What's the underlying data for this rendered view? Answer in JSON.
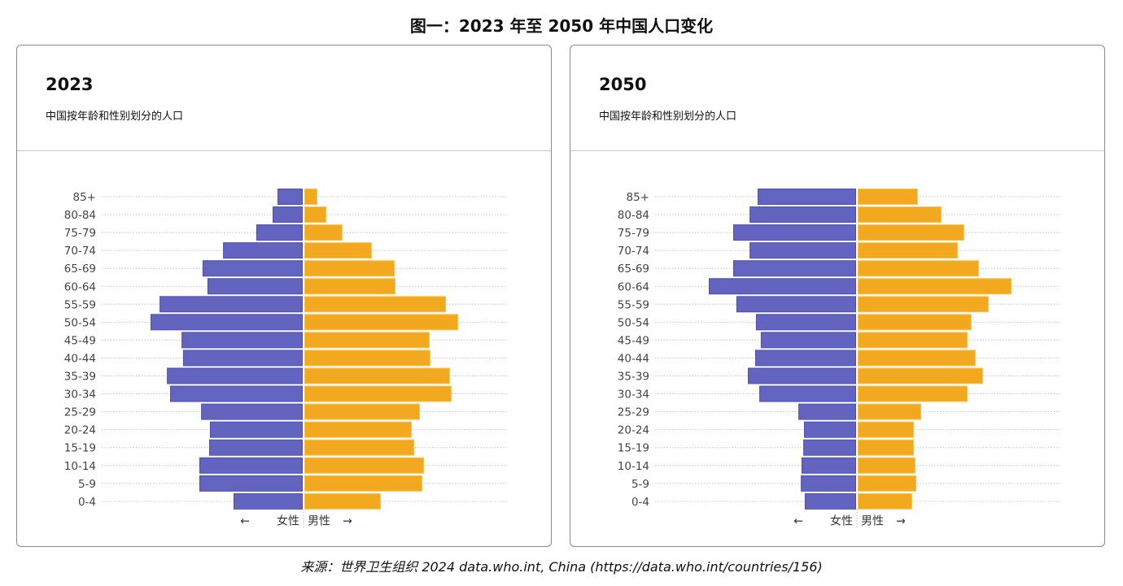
{
  "title": "图一：2023 年至 2050 年中国人口变化",
  "source": "来源：世界卫生组织 2024 data.who.int, China (https://data.who.int/countries/156)",
  "colors": {
    "female": "#6264c0",
    "male": "#f2a81f",
    "female_stroke": "#4d4fae",
    "male_stroke": "#f7c35a"
  },
  "chart_data": [
    {
      "type": "bar",
      "orientation": "horizontal-pyramid",
      "title": "2023",
      "subtitle": "中国按年龄和性别划分的人口",
      "categories": [
        "85+",
        "80-84",
        "75-79",
        "70-74",
        "65-69",
        "60-64",
        "55-59",
        "50-54",
        "45-49",
        "40-44",
        "35-39",
        "30-34",
        "25-29",
        "20-24",
        "15-19",
        "10-14",
        "5-9",
        "0-4"
      ],
      "series": [
        {
          "name": "女性",
          "side": "left",
          "values": [
            10.0,
            12.0,
            18.7,
            32.3,
            40.7,
            38.7,
            58.3,
            62.0,
            49.3,
            48.7,
            55.3,
            54.0,
            41.3,
            37.7,
            38.0,
            42.0,
            42.0,
            28.0
          ]
        },
        {
          "name": "男性",
          "side": "right",
          "values": [
            5.0,
            8.7,
            15.3,
            27.3,
            36.7,
            37.0,
            57.7,
            62.7,
            51.0,
            51.3,
            59.3,
            60.0,
            47.0,
            43.7,
            44.7,
            48.7,
            48.0,
            31.0
          ]
        }
      ],
      "x_axis": {
        "left_label": "女性",
        "right_label": "男性",
        "left_arrow": "←",
        "right_arrow": "→"
      },
      "units": "millions (estimated, no axis scale shown)",
      "xlim": [
        -70,
        70
      ],
      "grid": true,
      "grid_style": "dotted horizontal"
    },
    {
      "type": "bar",
      "orientation": "horizontal-pyramid",
      "title": "2050",
      "subtitle": "中国按年龄和性别划分的人口",
      "categories": [
        "85+",
        "80-84",
        "75-79",
        "70-74",
        "65-69",
        "60-64",
        "55-59",
        "50-54",
        "45-49",
        "40-44",
        "35-39",
        "30-34",
        "25-29",
        "20-24",
        "15-19",
        "10-14",
        "5-9",
        "0-4"
      ],
      "series": [
        {
          "name": "女性",
          "side": "left",
          "values": [
            40.0,
            43.3,
            50.0,
            43.3,
            50.0,
            60.0,
            48.7,
            40.7,
            38.7,
            41.0,
            44.0,
            39.3,
            23.3,
            21.0,
            21.3,
            22.0,
            22.3,
            20.7
          ]
        },
        {
          "name": "男性",
          "side": "right",
          "values": [
            24.3,
            34.0,
            43.3,
            40.7,
            49.3,
            62.7,
            53.3,
            46.3,
            44.7,
            48.0,
            51.0,
            44.7,
            25.7,
            22.7,
            22.7,
            23.3,
            23.7,
            22.0
          ]
        }
      ],
      "x_axis": {
        "left_label": "女性",
        "right_label": "男性",
        "left_arrow": "←",
        "right_arrow": "→"
      },
      "units": "millions (estimated, no axis scale shown)",
      "xlim": [
        -70,
        70
      ],
      "grid": true,
      "grid_style": "dotted horizontal"
    }
  ]
}
